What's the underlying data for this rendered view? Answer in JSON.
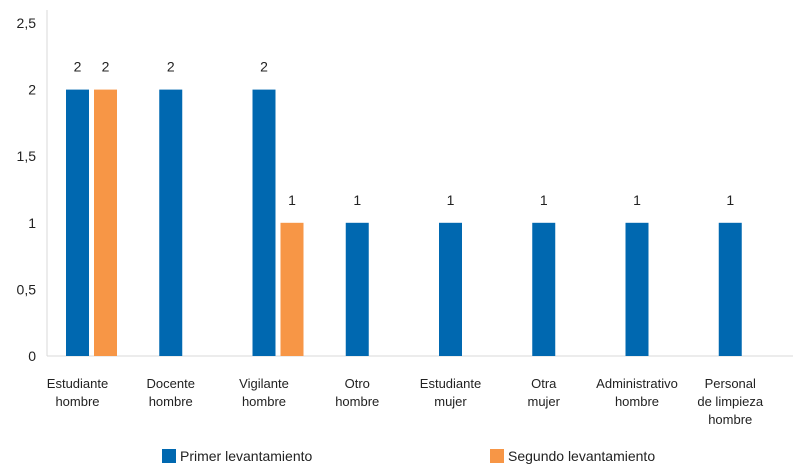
{
  "chart_data": {
    "type": "bar",
    "categories": [
      [
        "Estudiante",
        "hombre"
      ],
      [
        "Docente",
        "hombre"
      ],
      [
        "Vigilante",
        "hombre"
      ],
      [
        "Otro",
        "hombre"
      ],
      [
        "Estudiante",
        "mujer"
      ],
      [
        "Otra",
        "mujer"
      ],
      [
        "Administrativo",
        "hombre"
      ],
      [
        "Personal",
        "de limpieza",
        "hombre"
      ]
    ],
    "series": [
      {
        "name": "Primer levantamiento",
        "color": "#0068B0",
        "values": [
          2,
          2,
          2,
          1,
          1,
          1,
          1,
          1
        ]
      },
      {
        "name": "Segundo levantamiento",
        "color": "#F79646",
        "values": [
          2,
          null,
          1,
          null,
          null,
          null,
          null,
          null
        ]
      }
    ],
    "y_ticks": [
      "0",
      "0,5",
      "1",
      "1,5",
      "2",
      "2,5"
    ],
    "ylim": [
      0,
      2.5
    ],
    "grid": false,
    "legend_position": "bottom"
  }
}
